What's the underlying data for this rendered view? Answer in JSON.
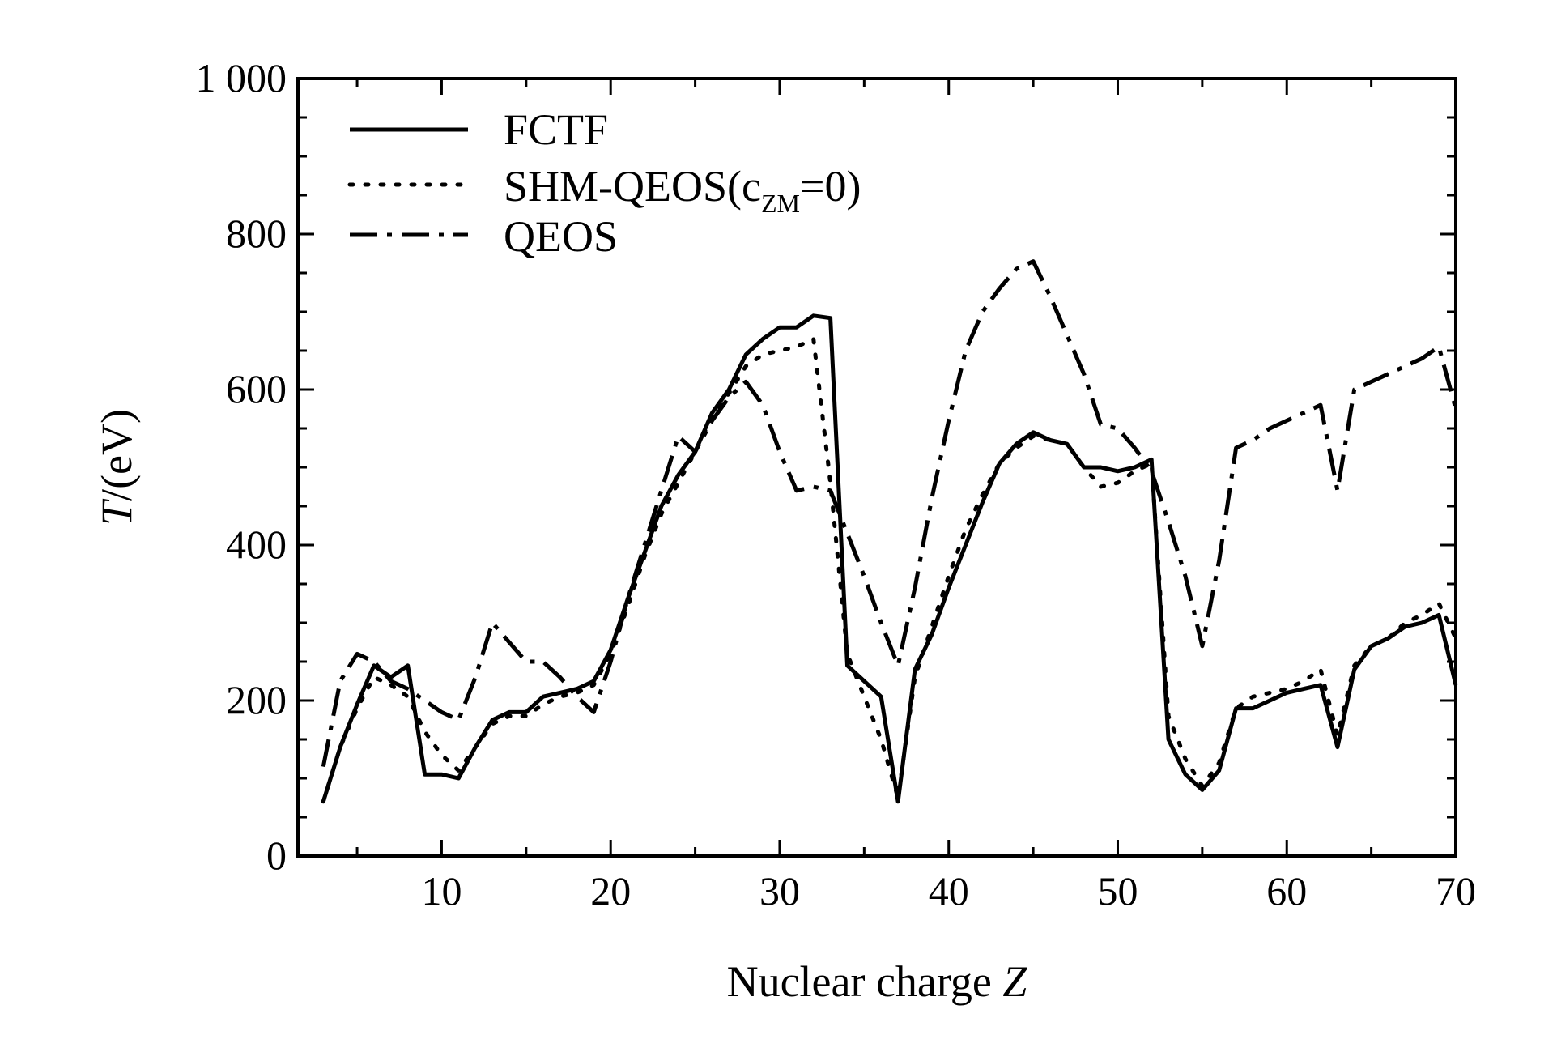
{
  "chart_data": {
    "type": "line",
    "title": "",
    "xlabel": "Nuclear charge",
    "xlabel_var": "Z",
    "ylabel_var": "T",
    "ylabel_unit": "/(eV)",
    "xlim": [
      1.5,
      70
    ],
    "ylim": [
      0,
      1000
    ],
    "x_ticks": [
      10,
      20,
      30,
      40,
      50,
      60,
      70
    ],
    "x_tick_labels": [
      "10",
      "20",
      "30",
      "40",
      "50",
      "60",
      "70"
    ],
    "y_ticks": [
      0,
      200,
      400,
      600,
      800,
      1000
    ],
    "y_tick_labels": [
      "0",
      "200",
      "400",
      "600",
      "800",
      "1 000"
    ],
    "grid": false,
    "legend_position": "top-left",
    "series": [
      {
        "name": "FCTF",
        "style": "solid",
        "points": [
          [
            3,
            70
          ],
          [
            4,
            140
          ],
          [
            5,
            195
          ],
          [
            6,
            245
          ],
          [
            7,
            230
          ],
          [
            8,
            245
          ],
          [
            9,
            105
          ],
          [
            10,
            105
          ],
          [
            11,
            100
          ],
          [
            12,
            140
          ],
          [
            13,
            175
          ],
          [
            14,
            185
          ],
          [
            15,
            185
          ],
          [
            16,
            205
          ],
          [
            17,
            210
          ],
          [
            18,
            215
          ],
          [
            19,
            225
          ],
          [
            20,
            265
          ],
          [
            21,
            330
          ],
          [
            22,
            390
          ],
          [
            23,
            450
          ],
          [
            24,
            490
          ],
          [
            25,
            520
          ],
          [
            26,
            570
          ],
          [
            27,
            600
          ],
          [
            28,
            645
          ],
          [
            29,
            665
          ],
          [
            30,
            680
          ],
          [
            31,
            680
          ],
          [
            32,
            695
          ],
          [
            33,
            692
          ],
          [
            34,
            245
          ],
          [
            35,
            225
          ],
          [
            36,
            205
          ],
          [
            37,
            70
          ],
          [
            38,
            240
          ],
          [
            39,
            285
          ],
          [
            40,
            345
          ],
          [
            41,
            400
          ],
          [
            42,
            455
          ],
          [
            43,
            505
          ],
          [
            44,
            530
          ],
          [
            45,
            545
          ],
          [
            46,
            535
          ],
          [
            47,
            530
          ],
          [
            48,
            500
          ],
          [
            49,
            500
          ],
          [
            50,
            495
          ],
          [
            51,
            500
          ],
          [
            52,
            510
          ],
          [
            53,
            150
          ],
          [
            54,
            105
          ],
          [
            55,
            85
          ],
          [
            56,
            110
          ],
          [
            57,
            190
          ],
          [
            58,
            190
          ],
          [
            59,
            200
          ],
          [
            60,
            210
          ],
          [
            61,
            215
          ],
          [
            62,
            220
          ],
          [
            63,
            140
          ],
          [
            64,
            240
          ],
          [
            65,
            270
          ],
          [
            66,
            280
          ],
          [
            67,
            295
          ],
          [
            68,
            300
          ],
          [
            69,
            310
          ],
          [
            70,
            220
          ]
        ]
      },
      {
        "name": "SHM-QEOS(c",
        "name_sub": "ZM",
        "name_tail": "=0)",
        "style": "dotted",
        "points": [
          [
            3,
            70
          ],
          [
            4,
            140
          ],
          [
            5,
            190
          ],
          [
            6,
            230
          ],
          [
            7,
            220
          ],
          [
            8,
            205
          ],
          [
            9,
            160
          ],
          [
            10,
            130
          ],
          [
            11,
            110
          ],
          [
            12,
            140
          ],
          [
            13,
            170
          ],
          [
            14,
            180
          ],
          [
            15,
            180
          ],
          [
            16,
            195
          ],
          [
            17,
            205
          ],
          [
            18,
            210
          ],
          [
            19,
            220
          ],
          [
            20,
            260
          ],
          [
            21,
            320
          ],
          [
            22,
            385
          ],
          [
            23,
            440
          ],
          [
            24,
            480
          ],
          [
            25,
            520
          ],
          [
            26,
            565
          ],
          [
            27,
            595
          ],
          [
            28,
            630
          ],
          [
            29,
            645
          ],
          [
            30,
            650
          ],
          [
            31,
            655
          ],
          [
            32,
            665
          ],
          [
            33,
            480
          ],
          [
            34,
            260
          ],
          [
            35,
            205
          ],
          [
            36,
            150
          ],
          [
            37,
            75
          ],
          [
            38,
            230
          ],
          [
            39,
            295
          ],
          [
            40,
            360
          ],
          [
            41,
            420
          ],
          [
            42,
            465
          ],
          [
            43,
            505
          ],
          [
            44,
            525
          ],
          [
            45,
            540
          ],
          [
            46,
            535
          ],
          [
            47,
            530
          ],
          [
            48,
            500
          ],
          [
            49,
            475
          ],
          [
            50,
            480
          ],
          [
            51,
            495
          ],
          [
            52,
            505
          ],
          [
            53,
            180
          ],
          [
            54,
            125
          ],
          [
            55,
            90
          ],
          [
            56,
            120
          ],
          [
            57,
            190
          ],
          [
            58,
            205
          ],
          [
            59,
            210
          ],
          [
            60,
            215
          ],
          [
            61,
            225
          ],
          [
            62,
            240
          ],
          [
            63,
            155
          ],
          [
            64,
            245
          ],
          [
            65,
            270
          ],
          [
            66,
            280
          ],
          [
            67,
            300
          ],
          [
            68,
            310
          ],
          [
            69,
            325
          ],
          [
            70,
            280
          ]
        ]
      },
      {
        "name": "QEOS",
        "style": "dashdot",
        "points": [
          [
            3,
            115
          ],
          [
            4,
            225
          ],
          [
            5,
            260
          ],
          [
            6,
            250
          ],
          [
            7,
            225
          ],
          [
            8,
            215
          ],
          [
            9,
            200
          ],
          [
            10,
            185
          ],
          [
            11,
            175
          ],
          [
            12,
            230
          ],
          [
            13,
            300
          ],
          [
            14,
            275
          ],
          [
            15,
            250
          ],
          [
            16,
            250
          ],
          [
            17,
            230
          ],
          [
            18,
            205
          ],
          [
            19,
            185
          ],
          [
            20,
            250
          ],
          [
            21,
            330
          ],
          [
            22,
            400
          ],
          [
            23,
            470
          ],
          [
            24,
            540
          ],
          [
            25,
            520
          ],
          [
            26,
            560
          ],
          [
            27,
            590
          ],
          [
            28,
            610
          ],
          [
            29,
            580
          ],
          [
            30,
            520
          ],
          [
            31,
            470
          ],
          [
            32,
            475
          ],
          [
            33,
            470
          ],
          [
            34,
            415
          ],
          [
            35,
            360
          ],
          [
            36,
            300
          ],
          [
            37,
            245
          ],
          [
            38,
            345
          ],
          [
            39,
            460
          ],
          [
            40,
            560
          ],
          [
            41,
            650
          ],
          [
            42,
            700
          ],
          [
            43,
            730
          ],
          [
            44,
            755
          ],
          [
            45,
            765
          ],
          [
            46,
            720
          ],
          [
            47,
            670
          ],
          [
            48,
            620
          ],
          [
            49,
            555
          ],
          [
            50,
            550
          ],
          [
            51,
            525
          ],
          [
            52,
            495
          ],
          [
            53,
            430
          ],
          [
            54,
            360
          ],
          [
            55,
            270
          ],
          [
            56,
            380
          ],
          [
            57,
            525
          ],
          [
            58,
            535
          ],
          [
            59,
            550
          ],
          [
            60,
            560
          ],
          [
            61,
            570
          ],
          [
            62,
            580
          ],
          [
            63,
            470
          ],
          [
            64,
            600
          ],
          [
            65,
            610
          ],
          [
            66,
            620
          ],
          [
            67,
            630
          ],
          [
            68,
            640
          ],
          [
            69,
            655
          ],
          [
            70,
            575
          ]
        ]
      }
    ]
  }
}
